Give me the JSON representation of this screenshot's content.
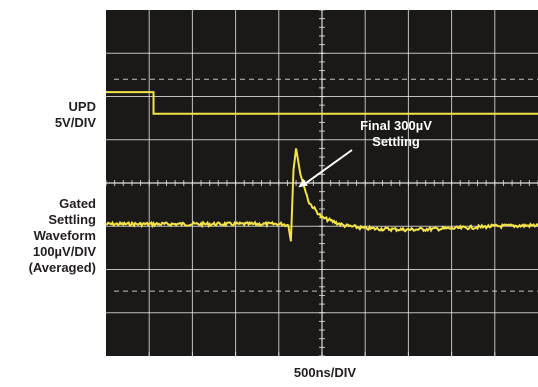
{
  "chart_data": {
    "type": "line",
    "screen_bg": "#1a1917",
    "trace_color": "#f2e34a",
    "grid_color": "#e8e8e8",
    "grid": true,
    "divisions": {
      "x": 10,
      "y": 8
    },
    "x_axis": {
      "label": "500ns/DIV",
      "unit": "ns",
      "per_division": 500
    },
    "series": [
      {
        "name": "UPD",
        "labels": [
          "UPD",
          "5V/DIV"
        ],
        "volts_per_div": 5,
        "points": [
          [
            0,
            1.9
          ],
          [
            1.1,
            1.9
          ],
          [
            1.1,
            2.4
          ],
          [
            4.3,
            2.4
          ],
          [
            10,
            2.4
          ]
        ]
      },
      {
        "name": "Gated Settling Waveform",
        "labels": [
          "Gated",
          "Settling",
          "Waveform",
          "100µV/DIV",
          "(Averaged)"
        ],
        "volts_per_div": 0.0001,
        "averaged": true,
        "points": [
          [
            0,
            4.95
          ],
          [
            2.9,
            4.95
          ],
          [
            4.1,
            4.95
          ],
          [
            4.22,
            4.98
          ],
          [
            4.28,
            5.35
          ],
          [
            4.34,
            3.7
          ],
          [
            4.4,
            3.2
          ],
          [
            4.5,
            3.8
          ],
          [
            4.7,
            4.45
          ],
          [
            5.0,
            4.8
          ],
          [
            5.5,
            4.98
          ],
          [
            6.0,
            5.05
          ],
          [
            7.0,
            5.08
          ],
          [
            8.0,
            5.05
          ],
          [
            9.0,
            5.0
          ],
          [
            10,
            4.98
          ]
        ]
      }
    ],
    "annotations": [
      {
        "lines": [
          "Final 300µV",
          "Settling"
        ],
        "points_to": [
          4.45,
          4.1
        ]
      }
    ]
  }
}
